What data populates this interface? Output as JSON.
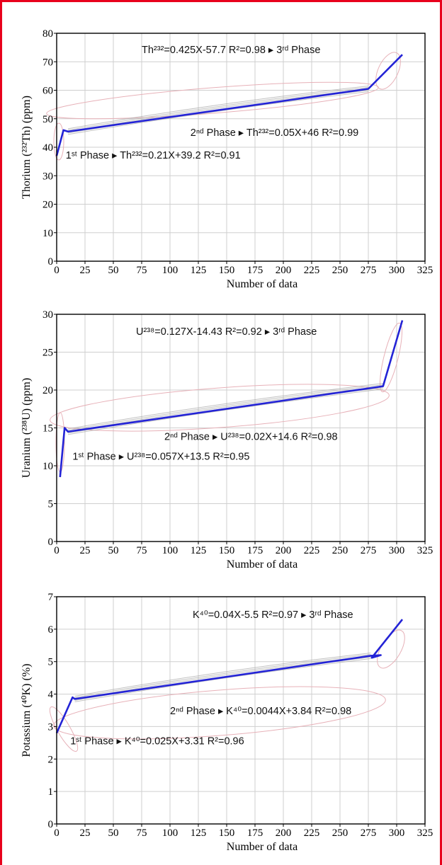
{
  "chart_data": [
    {
      "type": "line",
      "ylabel": "Thorium (²³²Th) (ppm)",
      "xlabel": "Number of data",
      "xlim": [
        0,
        325
      ],
      "ylim": [
        0,
        80
      ],
      "xticks": [
        "0",
        "25",
        "50",
        "75",
        "100",
        "125",
        "150",
        "175",
        "200",
        "225",
        "250",
        "275",
        "300",
        "325"
      ],
      "yticks": [
        "0",
        "10",
        "20",
        "30",
        "40",
        "50",
        "60",
        "70",
        "80"
      ],
      "grid": true,
      "series": [
        {
          "x": [
            0,
            6,
            10,
            275,
            305
          ],
          "y": [
            37,
            46,
            45.5,
            60.5,
            72.5
          ]
        }
      ],
      "annotations": [
        {
          "text": "Th²³²=0.425X-57.7    R²=0.98 ▸ 3ʳᵈ Phase",
          "x": 75,
          "y": 73
        },
        {
          "text": "2ⁿᵈ Phase ▸ Th²³²=0.05X+46    R²=0.99",
          "x": 118,
          "y": 44
        },
        {
          "text": "1ˢᵗ Phase ▸ Th²³²=0.21X+39.2    R²=0.91",
          "x": 8,
          "y": 36
        }
      ]
    },
    {
      "type": "line",
      "ylabel": "Uranium (²³⁸U) (ppm)",
      "xlabel": "Number of data",
      "xlim": [
        0,
        325
      ],
      "ylim": [
        0,
        30
      ],
      "xticks": [
        "0",
        "25",
        "50",
        "75",
        "100",
        "125",
        "150",
        "175",
        "200",
        "225",
        "250",
        "275",
        "300",
        "325"
      ],
      "yticks": [
        "0",
        "5",
        "10",
        "15",
        "20",
        "25",
        "30"
      ],
      "grid": true,
      "series": [
        {
          "x": [
            3,
            7,
            10,
            288,
            305
          ],
          "y": [
            8.5,
            15,
            14.5,
            20.5,
            29.2
          ]
        }
      ],
      "annotations": [
        {
          "text": "U²³⁸=0.127X-14.43    R²=0.92 ▸ 3ʳᵈ Phase",
          "x": 70,
          "y": 27.3
        },
        {
          "text": "2ⁿᵈ Phase ▸ U²³⁸=0.02X+14.6    R²=0.98",
          "x": 95,
          "y": 13.4
        },
        {
          "text": "1ˢᵗ Phase ▸ U²³⁸=0.057X+13.5    R²=0.95",
          "x": 14,
          "y": 10.8
        }
      ]
    },
    {
      "type": "line",
      "ylabel": "Potassium (⁴⁰K) (%)",
      "xlabel": "Number of data",
      "xlim": [
        0,
        325
      ],
      "ylim": [
        0,
        7
      ],
      "xticks": [
        "0",
        "25",
        "50",
        "75",
        "100",
        "125",
        "150",
        "175",
        "200",
        "225",
        "250",
        "275",
        "300",
        "325"
      ],
      "yticks": [
        "0",
        "1",
        "2",
        "3",
        "4",
        "5",
        "6",
        "7"
      ],
      "grid": true,
      "series": [
        {
          "x": [
            0,
            14,
            16,
            277,
            286,
            278,
            305
          ],
          "y": [
            2.8,
            3.9,
            3.85,
            5.18,
            5.2,
            5.12,
            6.3
          ]
        }
      ],
      "annotations": [
        {
          "text": "K⁴⁰=0.04X-5.5    R²=0.97 ▸ 3ʳᵈ Phase",
          "x": 120,
          "y": 6.35
        },
        {
          "text": "2ⁿᵈ Phase ▸ K⁴⁰=0.0044X+3.84    R²=0.98",
          "x": 100,
          "y": 3.38
        },
        {
          "text": "1ˢᵗ Phase ▸ K⁴⁰=0.025X+3.31    R²=0.96",
          "x": 12,
          "y": 2.45
        }
      ]
    }
  ]
}
